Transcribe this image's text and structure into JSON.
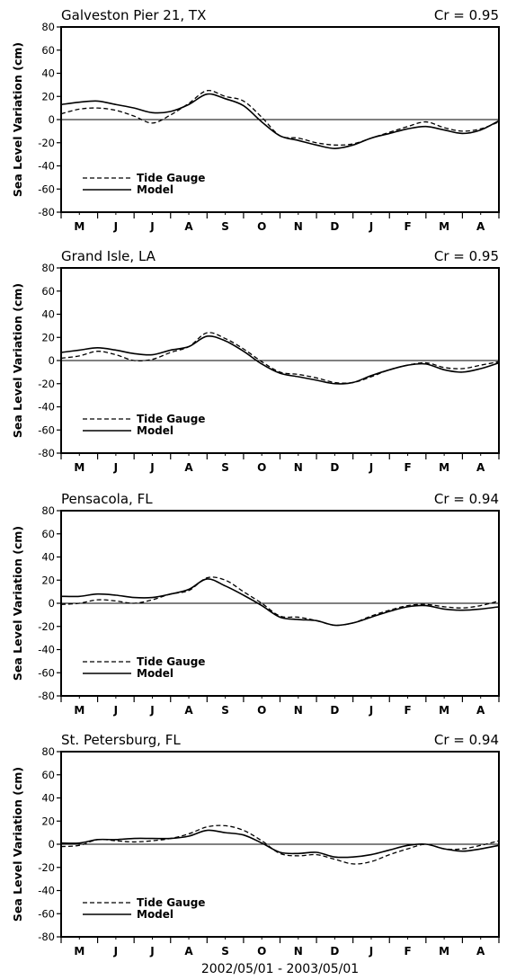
{
  "chart_data": [
    {
      "type": "line",
      "title": "Galveston Pier 21, TX",
      "annotation": "Cr = 0.95",
      "ylabel": "Sea Level Variation (cm)",
      "ylim": [
        -80,
        80
      ],
      "yticks": [
        80,
        60,
        40,
        20,
        0,
        -20,
        -40,
        -60,
        -80
      ],
      "x_month_labels": [
        "M",
        "J",
        "J",
        "A",
        "S",
        "O",
        "N",
        "D",
        "J",
        "F",
        "M",
        "A"
      ],
      "x": [
        0,
        0.5,
        1,
        1.5,
        2,
        2.5,
        3,
        3.5,
        4,
        4.5,
        5,
        5.5,
        6,
        6.5,
        7,
        7.5,
        8,
        8.5,
        9,
        9.5,
        10,
        10.5,
        11,
        11.5,
        12
      ],
      "series": [
        {
          "name": "Tide Gauge",
          "style": "dashed",
          "values": [
            5,
            9,
            10,
            8,
            3,
            -3,
            4,
            14,
            25,
            20,
            16,
            2,
            -14,
            -16,
            -20,
            -22,
            -21,
            -16,
            -11,
            -6,
            -2,
            -7,
            -10,
            -8,
            -2
          ]
        },
        {
          "name": "Model",
          "style": "solid",
          "values": [
            13,
            15,
            16,
            13,
            10,
            6,
            7,
            13,
            22,
            18,
            12,
            -2,
            -14,
            -18,
            -22,
            -25,
            -22,
            -16,
            -12,
            -8,
            -6,
            -9,
            -12,
            -9,
            -1
          ]
        }
      ]
    },
    {
      "type": "line",
      "title": "Grand Isle, LA",
      "annotation": "Cr = 0.95",
      "ylabel": "Sea Level Variation (cm)",
      "ylim": [
        -80,
        80
      ],
      "yticks": [
        80,
        60,
        40,
        20,
        0,
        -20,
        -40,
        -60,
        -80
      ],
      "x_month_labels": [
        "M",
        "J",
        "J",
        "A",
        "S",
        "O",
        "N",
        "D",
        "J",
        "F",
        "M",
        "A"
      ],
      "x": [
        0,
        0.5,
        1,
        1.5,
        2,
        2.5,
        3,
        3.5,
        4,
        4.5,
        5,
        5.5,
        6,
        6.5,
        7,
        7.5,
        8,
        8.5,
        9,
        9.5,
        10,
        10.5,
        11,
        11.5,
        12
      ],
      "series": [
        {
          "name": "Tide Gauge",
          "style": "dashed",
          "values": [
            2,
            4,
            8,
            5,
            0,
            1,
            7,
            12,
            24,
            19,
            10,
            -1,
            -10,
            -12,
            -15,
            -19,
            -19,
            -14,
            -8,
            -4,
            -2,
            -6,
            -7,
            -4,
            -1
          ]
        },
        {
          "name": "Model",
          "style": "solid",
          "values": [
            7,
            9,
            11,
            9,
            6,
            5,
            9,
            12,
            21,
            17,
            8,
            -3,
            -11,
            -14,
            -17,
            -20,
            -19,
            -13,
            -8,
            -4,
            -3,
            -8,
            -10,
            -7,
            -2
          ]
        }
      ]
    },
    {
      "type": "line",
      "title": "Pensacola, FL",
      "annotation": "Cr = 0.94",
      "ylabel": "Sea Level Variation (cm)",
      "ylim": [
        -80,
        80
      ],
      "yticks": [
        80,
        60,
        40,
        20,
        0,
        -20,
        -40,
        -60,
        -80
      ],
      "x_month_labels": [
        "M",
        "J",
        "J",
        "A",
        "S",
        "O",
        "N",
        "D",
        "J",
        "F",
        "M",
        "A"
      ],
      "x": [
        0,
        0.5,
        1,
        1.5,
        2,
        2.5,
        3,
        3.5,
        4,
        4.5,
        5,
        5.5,
        6,
        6.5,
        7,
        7.5,
        8,
        8.5,
        9,
        9.5,
        10,
        10.5,
        11,
        11.5,
        12
      ],
      "series": [
        {
          "name": "Tide Gauge",
          "style": "dashed",
          "values": [
            -1,
            0,
            3,
            2,
            0,
            3,
            8,
            11,
            22,
            20,
            10,
            0,
            -11,
            -12,
            -15,
            -19,
            -17,
            -11,
            -6,
            -2,
            -1,
            -3,
            -4,
            -2,
            2
          ]
        },
        {
          "name": "Model",
          "style": "solid",
          "values": [
            6,
            6,
            8,
            7,
            5,
            5,
            8,
            12,
            21,
            15,
            7,
            -2,
            -12,
            -14,
            -15,
            -19,
            -17,
            -12,
            -7,
            -3,
            -2,
            -5,
            -6,
            -5,
            -3
          ]
        }
      ]
    },
    {
      "type": "line",
      "title": "St. Petersburg, FL",
      "annotation": "Cr = 0.94",
      "ylabel": "Sea Level Variation (cm)",
      "xlabel": "2002/05/01 - 2003/05/01",
      "ylim": [
        -80,
        80
      ],
      "yticks": [
        80,
        60,
        40,
        20,
        0,
        -20,
        -40,
        -60,
        -80
      ],
      "x_month_labels": [
        "M",
        "J",
        "J",
        "A",
        "S",
        "O",
        "N",
        "D",
        "J",
        "F",
        "M",
        "A"
      ],
      "x": [
        0,
        0.5,
        1,
        1.5,
        2,
        2.5,
        3,
        3.5,
        4,
        4.5,
        5,
        5.5,
        6,
        6.5,
        7,
        7.5,
        8,
        8.5,
        9,
        9.5,
        10,
        10.5,
        11,
        11.5,
        12
      ],
      "series": [
        {
          "name": "Tide Gauge",
          "style": "dashed",
          "values": [
            -2,
            -1,
            4,
            3,
            2,
            3,
            5,
            9,
            15,
            16,
            12,
            3,
            -8,
            -10,
            -9,
            -13,
            -17,
            -15,
            -9,
            -4,
            0,
            -4,
            -4,
            -1,
            3
          ]
        },
        {
          "name": "Model",
          "style": "solid",
          "values": [
            1,
            1,
            4,
            4,
            5,
            5,
            5,
            7,
            12,
            10,
            8,
            1,
            -7,
            -8,
            -7,
            -11,
            -11,
            -9,
            -5,
            -1,
            0,
            -4,
            -6,
            -4,
            -1
          ]
        }
      ]
    }
  ]
}
